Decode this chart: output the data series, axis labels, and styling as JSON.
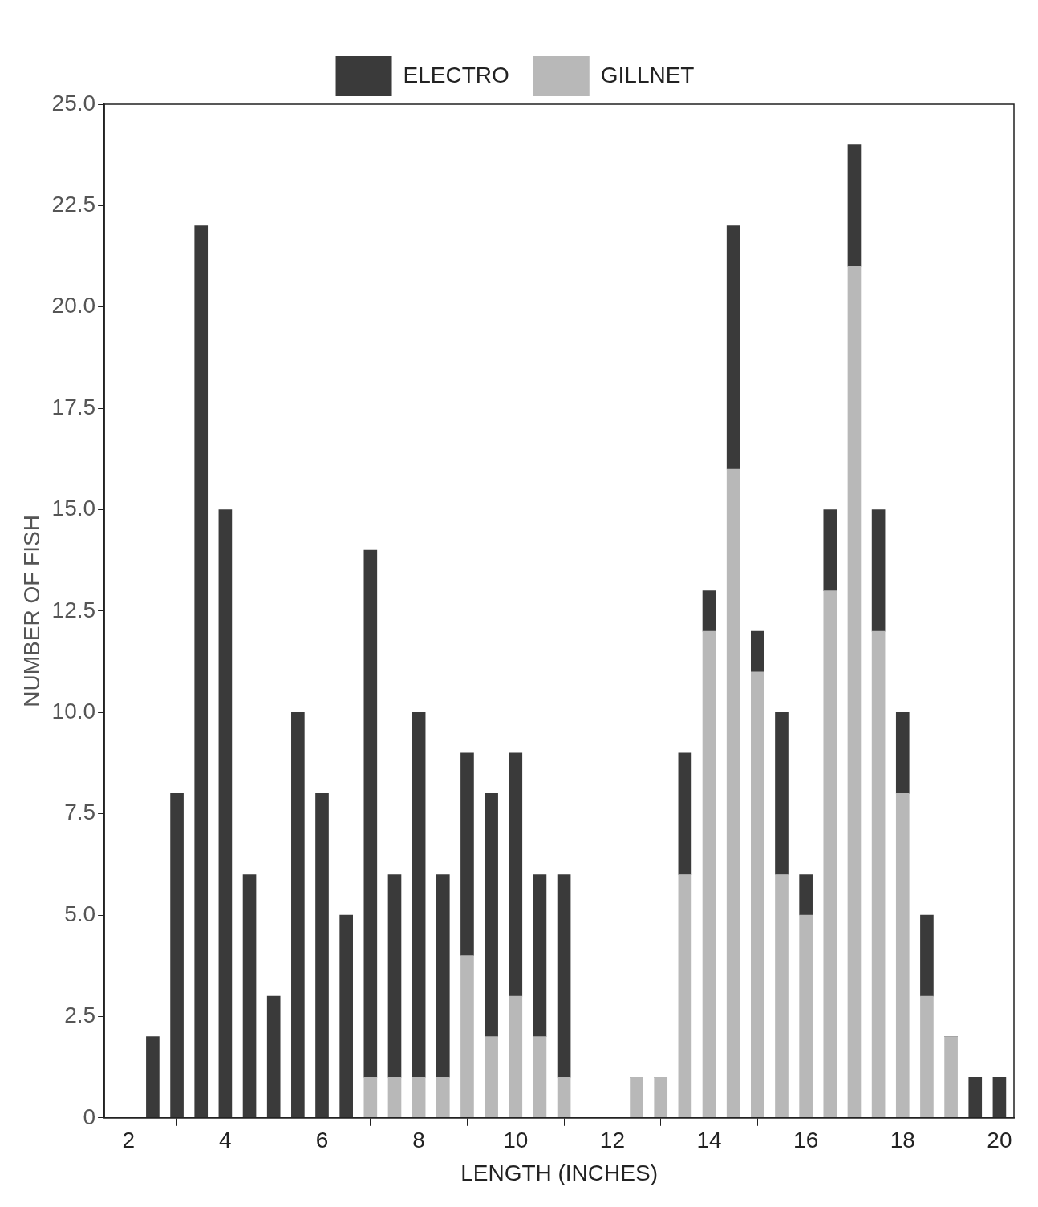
{
  "chart_data": {
    "type": "bar",
    "stacked": true,
    "xlabel": "LENGTH (INCHES)",
    "ylabel": "NUMBER OF FISH",
    "x": [
      2.5,
      3,
      3.5,
      4,
      4.5,
      5,
      5.5,
      6,
      6.5,
      7,
      7.5,
      8,
      8.5,
      9,
      9.5,
      10,
      10.5,
      11,
      12.5,
      13,
      13.5,
      14,
      14.5,
      15,
      15.5,
      16,
      16.5,
      17,
      17.5,
      18,
      18.5,
      19,
      19.5,
      20
    ],
    "series": [
      {
        "name": "GILLNET",
        "color": "#b8b8b8",
        "values": [
          0,
          0,
          0,
          0,
          0,
          0,
          0,
          0,
          0,
          1,
          1,
          1,
          1,
          4,
          2,
          3,
          2,
          1,
          1,
          1,
          6,
          12,
          16,
          11,
          6,
          5,
          13,
          21,
          12,
          8,
          3,
          2,
          0,
          0
        ]
      },
      {
        "name": "ELECTRO",
        "color": "#3a3a3a",
        "values": [
          2,
          8,
          22,
          15,
          6,
          3,
          10,
          8,
          5,
          13,
          5,
          9,
          5,
          5,
          6,
          6,
          4,
          5,
          0,
          0,
          3,
          1,
          6,
          1,
          4,
          1,
          2,
          3,
          3,
          2,
          2,
          0,
          1,
          1
        ]
      }
    ],
    "xlim": [
      1.5,
      20.3
    ],
    "xticks": [
      2,
      4,
      6,
      8,
      10,
      12,
      14,
      16,
      18,
      20
    ],
    "ylim": [
      0,
      25
    ],
    "yticks": [
      0,
      {
        "value": 2.5,
        "label": "2.5"
      },
      {
        "value": 5,
        "label": "5.0"
      },
      {
        "value": 7.5,
        "label": "7.5"
      },
      {
        "value": 10,
        "label": "10.0"
      },
      {
        "value": 12.5,
        "label": "12.5"
      },
      {
        "value": 15,
        "label": "15.0"
      },
      {
        "value": 17.5,
        "label": "17.5"
      },
      {
        "value": 20,
        "label": "20.0"
      },
      {
        "value": 22.5,
        "label": "22.5"
      },
      {
        "value": 25,
        "label": "25.0"
      }
    ],
    "grid": false,
    "legend": "top"
  }
}
